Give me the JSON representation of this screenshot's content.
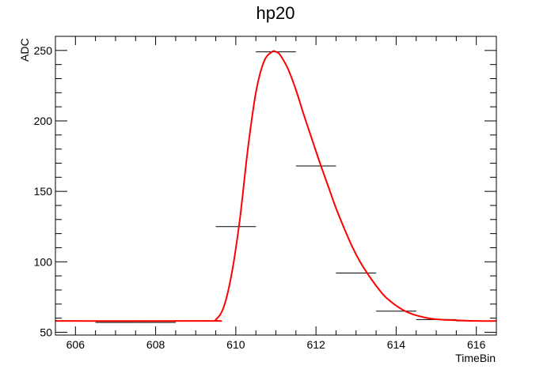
{
  "chart_data": {
    "type": "line",
    "title": "hp20",
    "xlabel": "TimeBin",
    "ylabel": "ADC",
    "xlim": [
      605.5,
      616.5
    ],
    "ylim": [
      48,
      260
    ],
    "x_major_ticks": [
      606,
      608,
      610,
      612,
      614,
      616
    ],
    "x_tick_labels": [
      "606",
      "608",
      "610",
      "612",
      "614",
      "616"
    ],
    "y_major_ticks": [
      50,
      100,
      150,
      200,
      250
    ],
    "y_tick_labels": [
      "50",
      "100",
      "150",
      "200",
      "250"
    ],
    "grid": false,
    "legend": "none",
    "series": [
      {
        "style": "histogram-bins",
        "color": "#000000",
        "bins": [
          {
            "x_low": 605.5,
            "x_high": 606.5,
            "y": 58
          },
          {
            "x_low": 606.5,
            "x_high": 607.5,
            "y": 57
          },
          {
            "x_low": 607.5,
            "x_high": 608.5,
            "y": 57
          },
          {
            "x_low": 608.5,
            "x_high": 609.5,
            "y": 58
          },
          {
            "x_low": 609.5,
            "x_high": 610.5,
            "y": 125
          },
          {
            "x_low": 610.5,
            "x_high": 611.5,
            "y": 249
          },
          {
            "x_low": 611.5,
            "x_high": 612.5,
            "y": 168
          },
          {
            "x_low": 612.5,
            "x_high": 613.5,
            "y": 92
          },
          {
            "x_low": 613.5,
            "x_high": 614.5,
            "y": 65
          },
          {
            "x_low": 614.5,
            "x_high": 615.5,
            "y": 59
          },
          {
            "x_low": 615.5,
            "x_high": 616.5,
            "y": 58
          }
        ]
      },
      {
        "style": "fit-curve",
        "color": "#ff0000",
        "x": [
          605.5,
          609.3,
          609.5,
          609.7,
          609.9,
          610.1,
          610.3,
          610.5,
          610.7,
          610.9,
          611.0,
          611.1,
          611.3,
          611.5,
          611.7,
          611.9,
          612.1,
          612.3,
          612.5,
          612.7,
          612.9,
          613.1,
          613.3,
          613.5,
          613.7,
          613.9,
          614.1,
          614.3,
          614.5,
          614.8,
          615.1,
          615.5,
          616.0,
          616.5
        ],
        "y": [
          58,
          58,
          59,
          68,
          92,
          130,
          180,
          220,
          242,
          249,
          249,
          247,
          237,
          222,
          204,
          187,
          170,
          154,
          138,
          124,
          111,
          100,
          91,
          83,
          76,
          71,
          67,
          64,
          62,
          60,
          59,
          58.5,
          58,
          58
        ]
      }
    ]
  }
}
